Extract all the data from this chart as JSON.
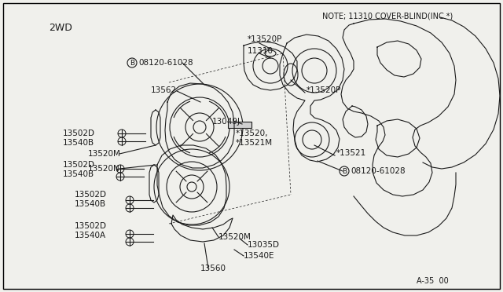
{
  "background_color": "#f0f0ec",
  "border_color": "#000000",
  "title_2wd": "2WD",
  "note_text": "NOTE; 11310 COVER-BLIND(INC.*)",
  "page_ref": "A-35  00",
  "text_color": "#1a1a1a",
  "line_color": "#1a1a1a",
  "lw": 0.8
}
